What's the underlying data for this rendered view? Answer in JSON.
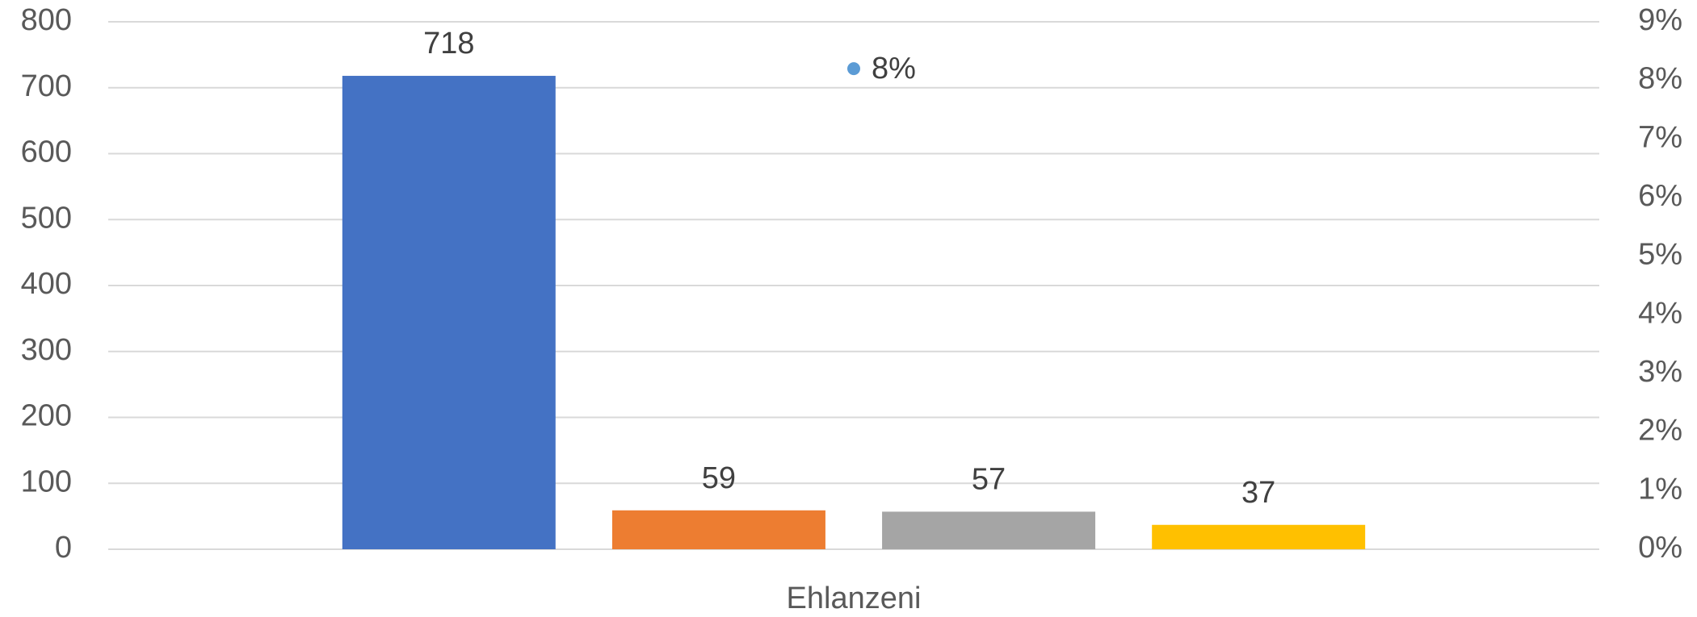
{
  "chart_data": {
    "type": "bar",
    "categories": [
      "Ehlanzeni"
    ],
    "series": [
      {
        "color": "#4472c4",
        "values": [
          718
        ]
      },
      {
        "color": "#ed7d31",
        "values": [
          59
        ]
      },
      {
        "color": "#a5a5a5",
        "values": [
          57
        ]
      },
      {
        "color": "#ffc000",
        "values": [
          37
        ]
      },
      {
        "type": "scatter",
        "axis": "y2",
        "color": "#5b9bd5",
        "values": [
          8.2
        ],
        "value_labels": [
          "8%"
        ]
      }
    ],
    "ylim": [
      0,
      800
    ],
    "yticks": [
      0,
      100,
      200,
      300,
      400,
      500,
      600,
      700,
      800
    ],
    "y2lim": [
      0,
      9
    ],
    "y2ticks": [
      {
        "value": 0,
        "label": "0%"
      },
      {
        "value": 1,
        "label": "1%"
      },
      {
        "value": 2,
        "label": "2%"
      },
      {
        "value": 3,
        "label": "3%"
      },
      {
        "value": 4,
        "label": "4%"
      },
      {
        "value": 5,
        "label": "5%"
      },
      {
        "value": 6,
        "label": "6%"
      },
      {
        "value": 7,
        "label": "7%"
      },
      {
        "value": 8,
        "label": "8%"
      },
      {
        "value": 9,
        "label": "9%"
      }
    ],
    "grid": true
  }
}
